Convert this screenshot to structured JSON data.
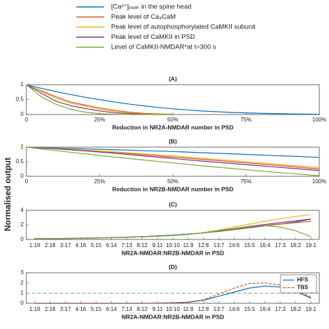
{
  "ylabel": "Normalised output",
  "chart_data": [
    {
      "type": "line",
      "title": "(A)",
      "xlabel": "Reduction in NR2A-NMDAR number in PSD",
      "x": [
        0,
        5,
        10,
        15,
        20,
        25,
        30,
        35,
        40,
        45,
        50,
        60,
        70,
        80,
        90,
        100
      ],
      "xlim": [
        0,
        100
      ],
      "xticks": [
        0,
        {
          "value": 25,
          "label": "25%"
        },
        {
          "value": 50,
          "label": "50%"
        },
        {
          "value": 75,
          "label": "75%"
        },
        {
          "value": 100,
          "label": "100%"
        }
      ],
      "ylim": [
        0,
        1
      ],
      "yticks": [
        0,
        0.5,
        1
      ],
      "series": [
        {
          "name": "[Ca²⁺]ₚₑₐₖ in the spine head",
          "color": "#0072bd",
          "values": [
            1,
            0.88,
            0.77,
            0.67,
            0.58,
            0.5,
            0.42,
            0.35,
            0.29,
            0.24,
            0.19,
            0.12,
            0.07,
            0.04,
            0.02,
            0.01
          ]
        },
        {
          "name": "Peak level of Ca₄CaM",
          "color": "#d95319",
          "values": [
            1,
            0.8,
            0.6,
            0.42,
            0.32,
            0.22,
            0.14,
            0.08,
            0.04,
            0.02,
            0.01,
            null,
            null,
            null,
            null,
            null
          ]
        },
        {
          "name": "Peak level of autophosphorylated CaMKII subunit",
          "color": "#edb120",
          "values": [
            1,
            0.78,
            0.55,
            0.38,
            0.28,
            0.18,
            0.1,
            0.05,
            0.02,
            0.01,
            0,
            null,
            null,
            null,
            null,
            null
          ]
        },
        {
          "name": "Peak level of CaMKII in PSD",
          "color": "#7e2f8e",
          "values": [
            1,
            0.72,
            0.45,
            0.3,
            0.2,
            0.12,
            0.06,
            0.03,
            0.01,
            0,
            0,
            null,
            null,
            null,
            null,
            null
          ]
        },
        {
          "name": "Level of CaMKII-NMDAR*at t=300 s",
          "color": "#77ac30",
          "values": [
            1,
            0.6,
            0.35,
            0.18,
            0.08,
            0.03,
            0.01,
            0,
            0,
            0,
            0,
            null,
            null,
            null,
            null,
            null
          ]
        }
      ]
    },
    {
      "type": "line",
      "title": "(B)",
      "xlabel": "Reduction in NR2B-NMDAR number in PSD",
      "x": [
        0,
        10,
        20,
        30,
        40,
        50,
        60,
        70,
        80,
        90,
        100
      ],
      "xlim": [
        0,
        100
      ],
      "xticks": [
        0,
        {
          "value": 25,
          "label": "25%"
        },
        {
          "value": 50,
          "label": "50%"
        },
        {
          "value": 75,
          "label": "75%"
        },
        {
          "value": 100,
          "label": "100%"
        }
      ],
      "ylim": [
        0,
        1
      ],
      "yticks": [
        0,
        0.5,
        1
      ],
      "series": [
        {
          "color": "#0072bd",
          "values": [
            1,
            0.97,
            0.94,
            0.91,
            0.88,
            0.85,
            0.81,
            0.77,
            0.73,
            0.69,
            0.65
          ]
        },
        {
          "color": "#d95319",
          "values": [
            1,
            0.95,
            0.89,
            0.82,
            0.74,
            0.66,
            0.58,
            0.5,
            0.42,
            0.34,
            0.25
          ]
        },
        {
          "color": "#edb120",
          "values": [
            1,
            0.96,
            0.9,
            0.84,
            0.77,
            0.7,
            0.62,
            0.54,
            0.46,
            0.38,
            0.3
          ]
        },
        {
          "color": "#7e2f8e",
          "values": [
            1,
            0.94,
            0.87,
            0.79,
            0.7,
            0.61,
            0.52,
            0.44,
            0.36,
            0.28,
            0.2
          ]
        },
        {
          "color": "#77ac30",
          "values": [
            1,
            0.88,
            0.77,
            0.66,
            0.56,
            0.46,
            0.36,
            0.27,
            0.18,
            0.1,
            0.02
          ]
        }
      ]
    },
    {
      "type": "line",
      "title": "(C)",
      "xlabel": "NR2A-NMDAR:NR2B-NMDAR in PSD",
      "categories": [
        "1:19",
        "2:18",
        "3:17",
        "4:16",
        "5:15",
        "6:14",
        "7:13",
        "8:12",
        "9:11",
        "10:10",
        "11:9",
        "12:8",
        "13:7",
        "14:6",
        "15:5",
        "16:4",
        "17:3",
        "18:2",
        "19:1"
      ],
      "ylim": [
        0,
        4
      ],
      "yticks": [
        0,
        2,
        4
      ],
      "series": [
        {
          "color": "#0072bd",
          "values": [
            0.1,
            0.12,
            0.15,
            0.18,
            0.22,
            0.27,
            0.33,
            0.4,
            0.5,
            0.6,
            0.75,
            0.9,
            1.1,
            1.35,
            1.6,
            1.85,
            2.1,
            2.4,
            2.8
          ]
        },
        {
          "color": "#d95319",
          "values": [
            0.1,
            0.11,
            0.13,
            0.16,
            0.2,
            0.25,
            0.3,
            0.37,
            0.45,
            0.55,
            0.7,
            0.9,
            1.15,
            1.4,
            1.65,
            1.9,
            2.1,
            2.3,
            2.5
          ]
        },
        {
          "color": "#edb120",
          "values": [
            0.1,
            0.11,
            0.13,
            0.16,
            0.2,
            0.25,
            0.3,
            0.37,
            0.45,
            0.55,
            0.7,
            0.95,
            1.3,
            1.7,
            2.1,
            2.5,
            2.85,
            3.15,
            3.4
          ]
        },
        {
          "color": "#7e2f8e",
          "values": [
            0.1,
            0.11,
            0.13,
            0.16,
            0.2,
            0.25,
            0.3,
            0.37,
            0.45,
            0.55,
            0.7,
            0.9,
            1.2,
            1.5,
            1.8,
            2.05,
            2.3,
            2.55,
            2.8
          ]
        },
        {
          "color": "#77ac30",
          "values": [
            0.1,
            0.11,
            0.13,
            0.16,
            0.2,
            0.25,
            0.3,
            0.37,
            0.45,
            0.55,
            0.7,
            0.9,
            1.2,
            1.5,
            1.75,
            1.9,
            1.7,
            1.2,
            0.4
          ]
        }
      ]
    },
    {
      "type": "line",
      "title": "(D)",
      "xlabel": "NR2A-NMDAR:NR2B-NMDAR in PSD",
      "categories": [
        "1:19",
        "2:18",
        "3:17",
        "4:16",
        "5:15",
        "6:14",
        "7:13",
        "8:12",
        "9:11",
        "10:10",
        "11:9",
        "12:8",
        "13:7",
        "14:6",
        "15:5",
        "16:4",
        "17:3",
        "18:2",
        "19:1"
      ],
      "ylim": [
        0,
        3
      ],
      "yticks": [
        0,
        1,
        2,
        3
      ],
      "hline": 1,
      "legend": "top-right",
      "series": [
        {
          "name": "HFS",
          "color": "#0072bd",
          "dashed": false,
          "values": [
            0,
            0,
            0,
            0,
            0,
            0,
            0,
            0,
            0.02,
            0.05,
            0.1,
            0.3,
            0.7,
            1.1,
            1.5,
            1.7,
            1.6,
            1.2,
            0.5
          ]
        },
        {
          "name": "TBS",
          "color": "#d95319",
          "dashed": true,
          "values": [
            0,
            0,
            0,
            0,
            0,
            0,
            0,
            0,
            0.02,
            0.05,
            0.12,
            0.35,
            0.9,
            1.5,
            1.95,
            2.0,
            1.8,
            1.3,
            0.6
          ]
        }
      ]
    }
  ]
}
